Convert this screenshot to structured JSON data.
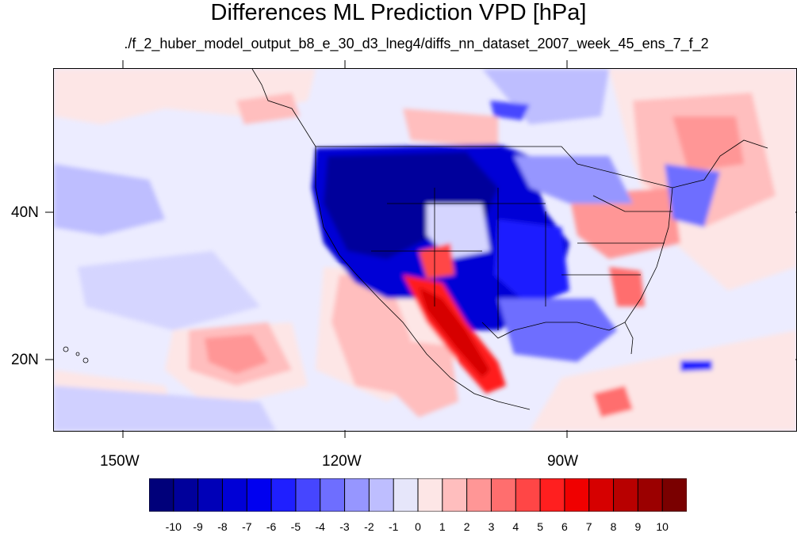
{
  "figure": {
    "title": "Differences ML Prediction VPD [hPa]",
    "subtitle": "./f_2_huber_model_output_b8_e_30_d3_lneg4/diffs_nn_dataset_2007_week_45_ens_7_f_2"
  },
  "axes": {
    "lon_labels": [
      "150W",
      "120W",
      "90W"
    ],
    "lat_labels": [
      "40N",
      "20N"
    ]
  },
  "colorbar": {
    "labels": [
      "-10",
      "-9",
      "-8",
      "-7",
      "-6",
      "-5",
      "-4",
      "-3",
      "-2",
      "-1",
      "0",
      "1",
      "2",
      "3",
      "4",
      "5",
      "6",
      "7",
      "8",
      "9",
      "10"
    ],
    "colors": [
      "#00007a",
      "#00009b",
      "#0000b8",
      "#0000d6",
      "#0000f0",
      "#1f1fff",
      "#4646ff",
      "#6e6eff",
      "#9696ff",
      "#bebeff",
      "#e6e6fa",
      "#fde6e6",
      "#ffbebe",
      "#ff9696",
      "#ff6e6e",
      "#ff4646",
      "#ff1f1f",
      "#f00000",
      "#d60000",
      "#b80000",
      "#9b0000",
      "#7a0000"
    ]
  }
}
